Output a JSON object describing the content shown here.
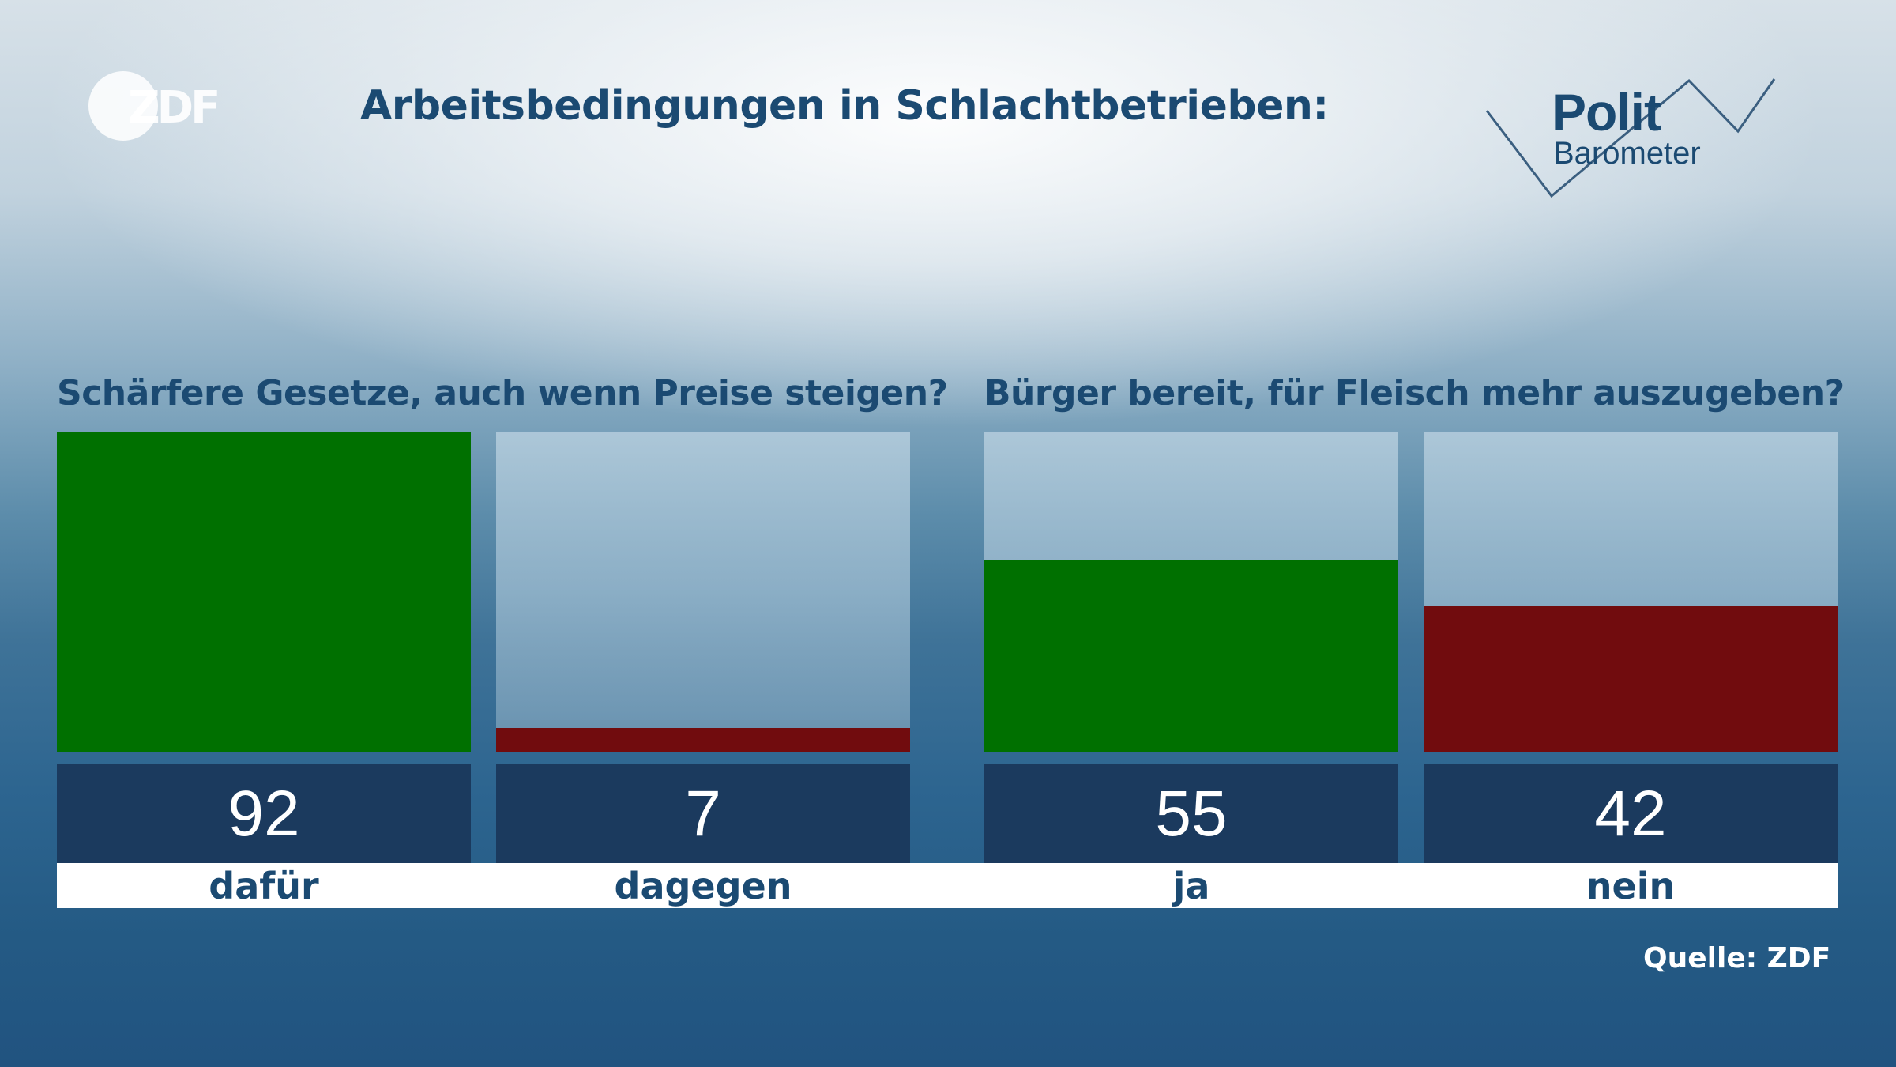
{
  "brand": {
    "zdf": "ZDF",
    "polit_line1": "Polit",
    "polit_line2": "Barometer"
  },
  "title": "Arbeitsbedingungen in Schlachtbetrieben:",
  "source": "Quelle: ZDF",
  "colors": {
    "green": "#007000",
    "red": "#710c0e",
    "dark_blue": "#1b3a5e",
    "title": "#1b4a72"
  },
  "chart_data": [
    {
      "type": "bar",
      "title": "Schärfere Gesetze, auch wenn Preise steigen?",
      "categories": [
        "dafür",
        "dagegen"
      ],
      "values": [
        92,
        7
      ],
      "colors": [
        "#007000",
        "#710c0e"
      ],
      "ylim": [
        0,
        92
      ]
    },
    {
      "type": "bar",
      "title": "Bürger bereit, für Fleisch mehr auszugeben?",
      "categories": [
        "ja",
        "nein"
      ],
      "values": [
        55,
        42
      ],
      "colors": [
        "#007000",
        "#710c0e"
      ],
      "ylim": [
        0,
        92
      ]
    }
  ]
}
